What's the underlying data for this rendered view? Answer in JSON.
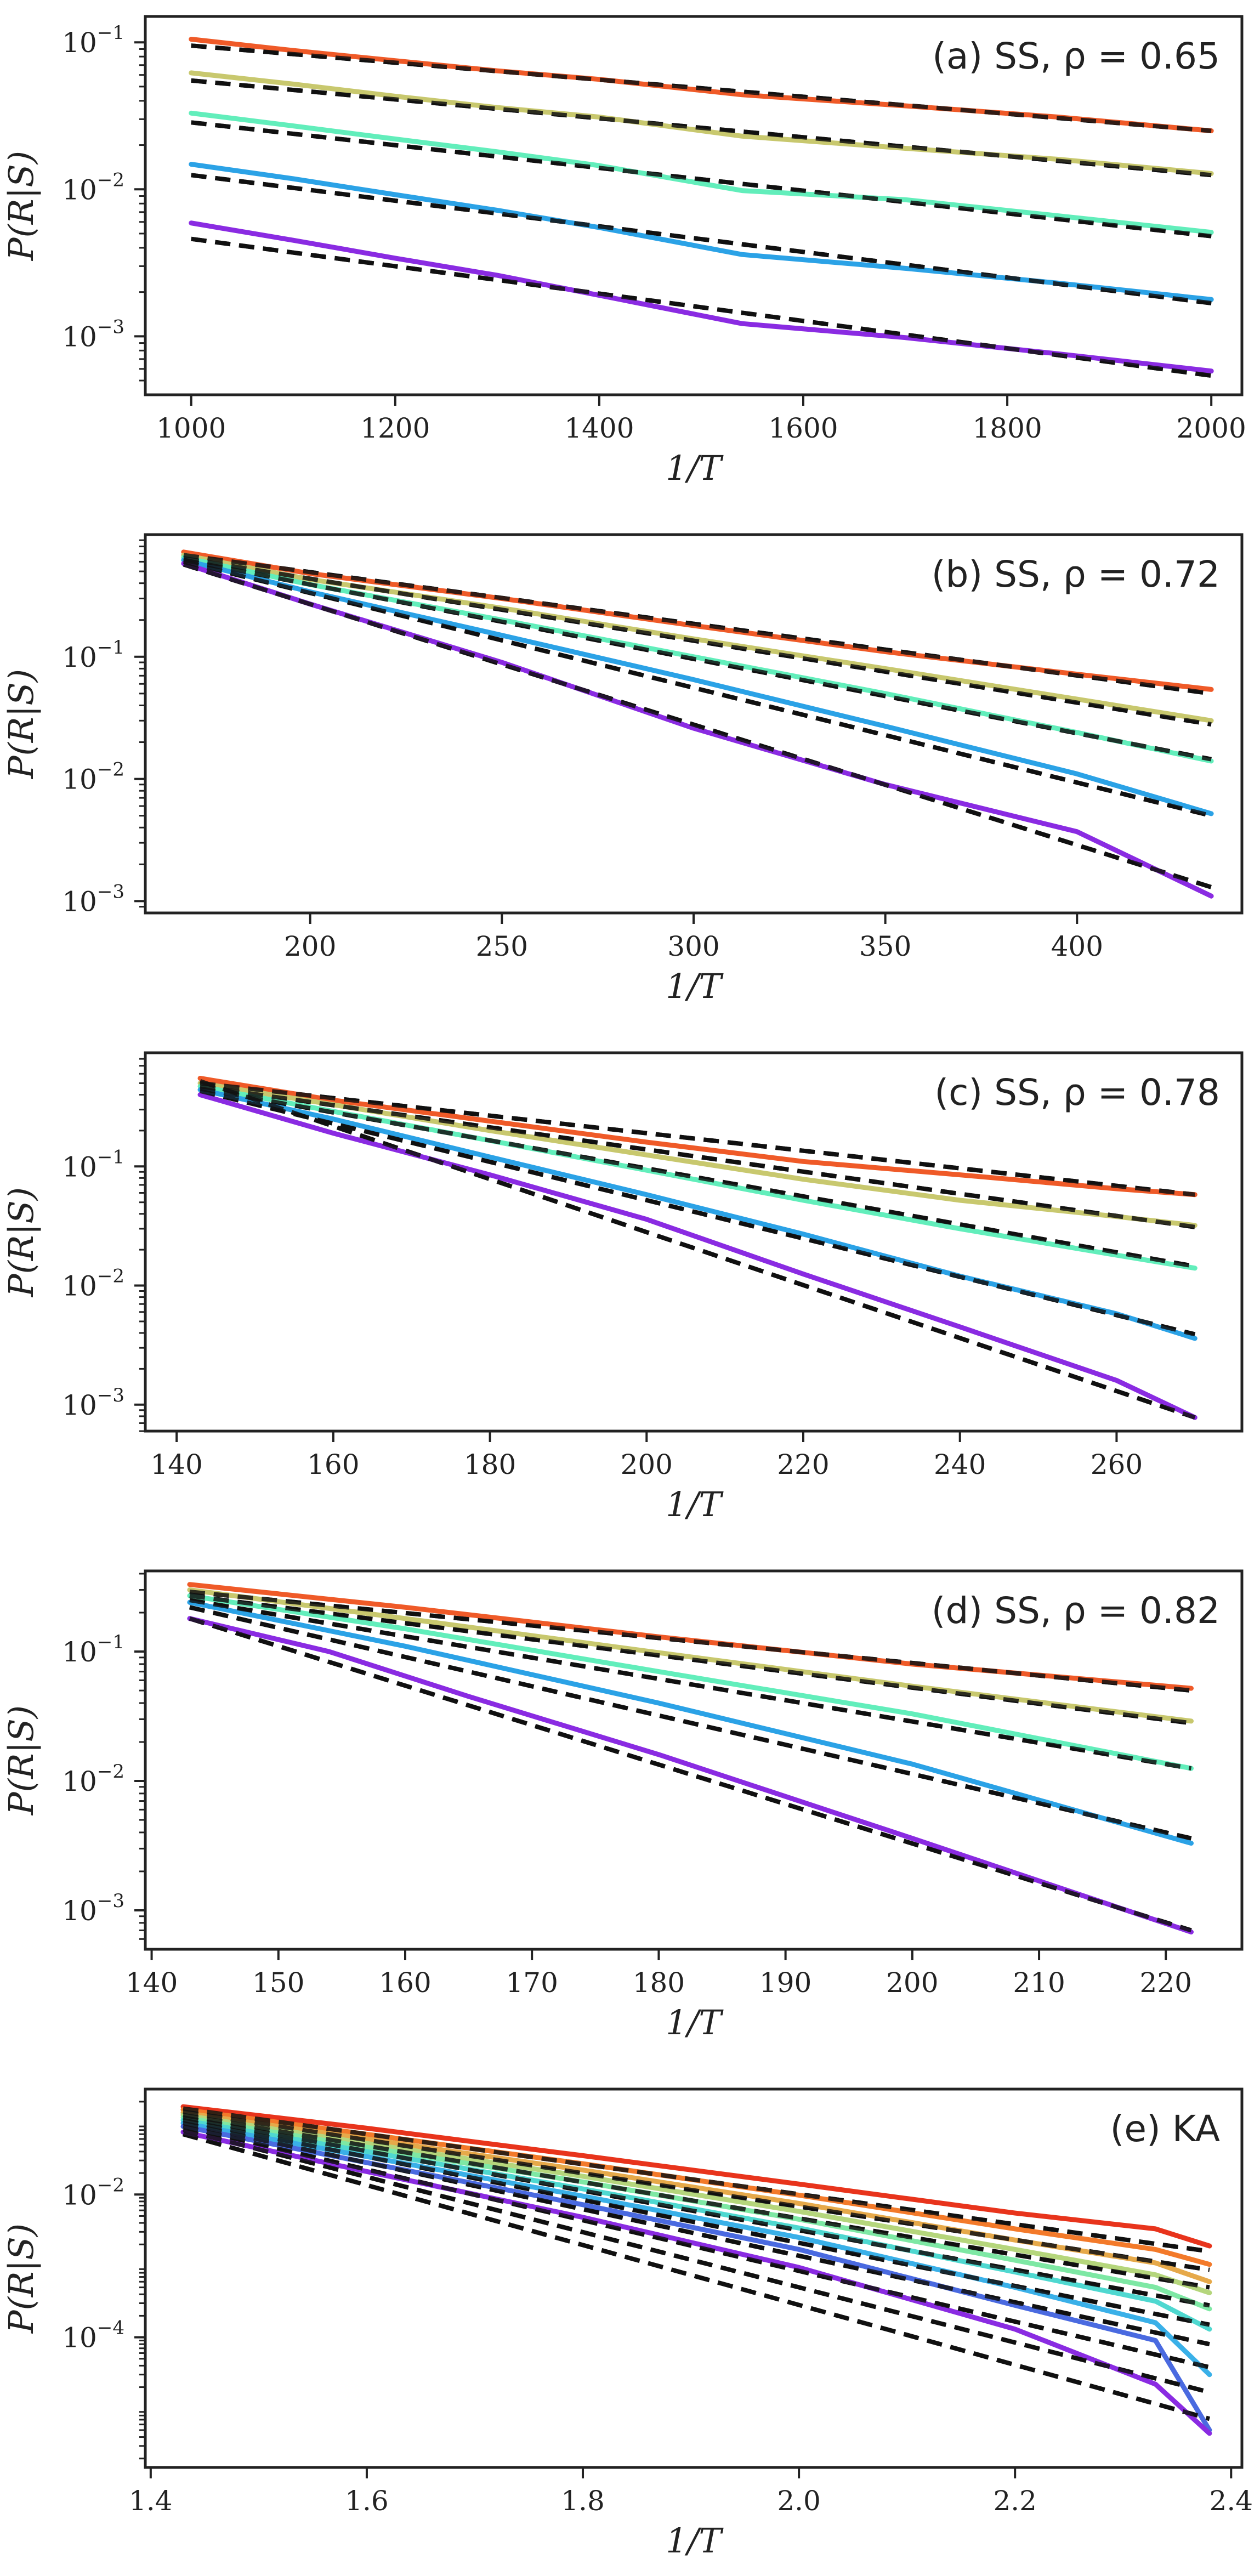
{
  "chart_data": [
    {
      "type": "line",
      "title": "(a) SS, ρ = 0.65",
      "xlabel": "1/T",
      "ylabel": "P(R|S)",
      "yscale": "log",
      "xlim": [
        955,
        2030
      ],
      "ylim": [
        0.0004,
        0.15
      ],
      "xticks": [
        1000,
        1200,
        1400,
        1600,
        1800,
        2000
      ],
      "xtick_labels": [
        "1000",
        "1200",
        "1400",
        "1600",
        "1800",
        "2000"
      ],
      "yticks": [
        0.001,
        0.01,
        0.1
      ],
      "ytick_labels": [
        {
          "base": "10",
          "exp": "−3"
        },
        {
          "base": "10",
          "exp": "−2"
        },
        {
          "base": "10",
          "exp": "−1"
        }
      ],
      "series": [
        {
          "color": "#ef5a28",
          "x": [
            1000,
            1100,
            1200,
            1300,
            1400,
            1540,
            1700,
            1850,
            2000
          ],
          "y": [
            0.105,
            0.088,
            0.075,
            0.064,
            0.056,
            0.044,
            0.037,
            0.031,
            0.025
          ]
        },
        {
          "color": "#c8c86e",
          "x": [
            1000,
            1100,
            1200,
            1300,
            1400,
            1540,
            1700,
            1850,
            2000
          ],
          "y": [
            0.062,
            0.052,
            0.043,
            0.036,
            0.031,
            0.023,
            0.019,
            0.016,
            0.0128
          ]
        },
        {
          "color": "#62eebb",
          "x": [
            1000,
            1100,
            1200,
            1300,
            1400,
            1540,
            1700,
            1850,
            2000
          ],
          "y": [
            0.033,
            0.027,
            0.022,
            0.018,
            0.0145,
            0.0098,
            0.0085,
            0.0066,
            0.0051
          ]
        },
        {
          "color": "#2ba2e6",
          "x": [
            1000,
            1100,
            1200,
            1300,
            1400,
            1540,
            1700,
            1850,
            2000
          ],
          "y": [
            0.0148,
            0.0118,
            0.0092,
            0.0072,
            0.0055,
            0.0036,
            0.0029,
            0.0023,
            0.00178
          ]
        },
        {
          "color": "#8a2be2",
          "x": [
            1000,
            1100,
            1200,
            1300,
            1400,
            1540,
            1700,
            1850,
            2000
          ],
          "y": [
            0.0059,
            0.0045,
            0.0034,
            0.0026,
            0.0019,
            0.00122,
            0.00098,
            0.00076,
            0.00058
          ]
        }
      ],
      "fits": [
        {
          "x": [
            1000,
            2000
          ],
          "y": [
            0.095,
            0.025
          ]
        },
        {
          "x": [
            1000,
            2000
          ],
          "y": [
            0.055,
            0.0125
          ]
        },
        {
          "x": [
            1000,
            2000
          ],
          "y": [
            0.0285,
            0.0048
          ]
        },
        {
          "x": [
            1000,
            2000
          ],
          "y": [
            0.0125,
            0.00168
          ]
        },
        {
          "x": [
            1000,
            2000
          ],
          "y": [
            0.0046,
            0.00054
          ]
        }
      ]
    },
    {
      "type": "line",
      "title": "(b) SS, ρ = 0.72",
      "xlabel": "1/T",
      "ylabel": "P(R|S)",
      "yscale": "log",
      "xlim": [
        157,
        443
      ],
      "ylim": [
        0.0008,
        1.0
      ],
      "xticks": [
        200,
        250,
        300,
        350,
        400
      ],
      "xtick_labels": [
        "200",
        "250",
        "300",
        "350",
        "400"
      ],
      "yticks": [
        0.001,
        0.01,
        0.1
      ],
      "ytick_labels": [
        {
          "base": "10",
          "exp": "−3"
        },
        {
          "base": "10",
          "exp": "−2"
        },
        {
          "base": "10",
          "exp": "−1"
        }
      ],
      "series": [
        {
          "color": "#ef5a28",
          "x": [
            167,
            200,
            250,
            300,
            350,
            400,
            435
          ],
          "y": [
            0.72,
            0.48,
            0.3,
            0.18,
            0.11,
            0.072,
            0.054
          ]
        },
        {
          "color": "#c8c86e",
          "x": [
            167,
            200,
            250,
            300,
            350,
            400,
            435
          ],
          "y": [
            0.68,
            0.43,
            0.25,
            0.14,
            0.08,
            0.045,
            0.03
          ]
        },
        {
          "color": "#62eebb",
          "x": [
            167,
            200,
            250,
            300,
            350,
            400,
            435
          ],
          "y": [
            0.65,
            0.39,
            0.2,
            0.1,
            0.05,
            0.024,
            0.014
          ]
        },
        {
          "color": "#2ba2e6",
          "x": [
            167,
            200,
            250,
            300,
            350,
            400,
            435
          ],
          "y": [
            0.62,
            0.34,
            0.15,
            0.065,
            0.027,
            0.011,
            0.0052
          ]
        },
        {
          "color": "#8a2be2",
          "x": [
            167,
            200,
            250,
            300,
            350,
            400,
            435
          ],
          "y": [
            0.58,
            0.27,
            0.09,
            0.026,
            0.009,
            0.0037,
            0.0011
          ]
        }
      ],
      "fits": [
        {
          "x": [
            167,
            435
          ],
          "y": [
            0.68,
            0.05
          ]
        },
        {
          "x": [
            167,
            435
          ],
          "y": [
            0.64,
            0.028
          ]
        },
        {
          "x": [
            167,
            435
          ],
          "y": [
            0.62,
            0.0145
          ]
        },
        {
          "x": [
            167,
            435
          ],
          "y": [
            0.6,
            0.005
          ]
        },
        {
          "x": [
            167,
            435
          ],
          "y": [
            0.57,
            0.0013
          ]
        }
      ]
    },
    {
      "type": "line",
      "title": "(c) SS, ρ = 0.78",
      "xlabel": "1/T",
      "ylabel": "P(R|S)",
      "yscale": "log",
      "xlim": [
        136,
        276
      ],
      "ylim": [
        0.0006,
        0.9
      ],
      "xticks": [
        140,
        160,
        180,
        200,
        220,
        240,
        260
      ],
      "xtick_labels": [
        "140",
        "160",
        "180",
        "200",
        "220",
        "240",
        "260"
      ],
      "yticks": [
        0.001,
        0.01,
        0.1
      ],
      "ytick_labels": [
        {
          "base": "10",
          "exp": "−3"
        },
        {
          "base": "10",
          "exp": "−2"
        },
        {
          "base": "10",
          "exp": "−1"
        }
      ],
      "series": [
        {
          "color": "#ef5a28",
          "x": [
            143,
            160,
            180,
            200,
            220,
            240,
            260,
            270
          ],
          "y": [
            0.55,
            0.36,
            0.24,
            0.16,
            0.11,
            0.085,
            0.065,
            0.058
          ]
        },
        {
          "color": "#c8c86e",
          "x": [
            143,
            160,
            180,
            200,
            220,
            240,
            260,
            270
          ],
          "y": [
            0.5,
            0.33,
            0.2,
            0.125,
            0.078,
            0.052,
            0.038,
            0.032
          ]
        },
        {
          "color": "#62eebb",
          "x": [
            143,
            160,
            180,
            200,
            220,
            240,
            260,
            270
          ],
          "y": [
            0.47,
            0.29,
            0.165,
            0.093,
            0.052,
            0.03,
            0.018,
            0.014
          ]
        },
        {
          "color": "#2ba2e6",
          "x": [
            143,
            160,
            180,
            200,
            220,
            240,
            260,
            270
          ],
          "y": [
            0.44,
            0.25,
            0.12,
            0.058,
            0.027,
            0.012,
            0.0058,
            0.0036
          ]
        },
        {
          "color": "#8a2be2",
          "x": [
            143,
            160,
            180,
            200,
            220,
            240,
            260,
            270
          ],
          "y": [
            0.4,
            0.19,
            0.085,
            0.036,
            0.0125,
            0.0045,
            0.0016,
            0.00078
          ]
        }
      ],
      "fits": [
        {
          "x": [
            143,
            270
          ],
          "y": [
            0.5,
            0.058
          ]
        },
        {
          "x": [
            143,
            270
          ],
          "y": [
            0.47,
            0.031
          ]
        },
        {
          "x": [
            143,
            270
          ],
          "y": [
            0.45,
            0.0145
          ]
        },
        {
          "x": [
            143,
            270
          ],
          "y": [
            0.43,
            0.0039
          ]
        },
        {
          "x": [
            143,
            270
          ],
          "y": [
            0.52,
            0.00078
          ]
        }
      ]
    },
    {
      "type": "line",
      "title": "(d) SS, ρ = 0.82",
      "xlabel": "1/T",
      "ylabel": "P(R|S)",
      "yscale": "log",
      "xlim": [
        139.5,
        226
      ],
      "ylim": [
        0.0005,
        0.42
      ],
      "xticks": [
        140,
        150,
        160,
        170,
        180,
        190,
        200,
        210,
        220
      ],
      "xtick_labels": [
        "140",
        "150",
        "160",
        "170",
        "180",
        "190",
        "200",
        "210",
        "220"
      ],
      "yticks": [
        0.001,
        0.01,
        0.1
      ],
      "ytick_labels": [
        {
          "base": "10",
          "exp": "−3"
        },
        {
          "base": "10",
          "exp": "−2"
        },
        {
          "base": "10",
          "exp": "−1"
        }
      ],
      "series": [
        {
          "color": "#ef5a28",
          "x": [
            143,
            160,
            180,
            200,
            222
          ],
          "y": [
            0.33,
            0.22,
            0.13,
            0.08,
            0.052
          ]
        },
        {
          "color": "#c8c86e",
          "x": [
            143,
            160,
            180,
            200,
            222
          ],
          "y": [
            0.3,
            0.18,
            0.098,
            0.054,
            0.029
          ]
        },
        {
          "color": "#62eebb",
          "x": [
            143,
            160,
            180,
            200,
            222
          ],
          "y": [
            0.27,
            0.15,
            0.07,
            0.033,
            0.0125
          ]
        },
        {
          "color": "#2ba2e6",
          "x": [
            143,
            160,
            180,
            200,
            222
          ],
          "y": [
            0.24,
            0.11,
            0.04,
            0.0135,
            0.0033
          ]
        },
        {
          "color": "#8a2be2",
          "x": [
            143,
            154,
            165,
            180,
            200,
            222
          ],
          "y": [
            0.18,
            0.1,
            0.045,
            0.016,
            0.0036,
            0.00068
          ]
        }
      ],
      "fits": [
        {
          "x": [
            143,
            222
          ],
          "y": [
            0.29,
            0.05
          ]
        },
        {
          "x": [
            143,
            222
          ],
          "y": [
            0.27,
            0.028
          ]
        },
        {
          "x": [
            143,
            222
          ],
          "y": [
            0.25,
            0.0125
          ]
        },
        {
          "x": [
            143,
            222
          ],
          "y": [
            0.22,
            0.0036
          ]
        },
        {
          "x": [
            143,
            222
          ],
          "y": [
            0.18,
            0.0007
          ]
        }
      ]
    },
    {
      "type": "line",
      "title": "(e) KA",
      "xlabel": "1/T",
      "ylabel": "P(R|S)",
      "yscale": "log",
      "xlim": [
        1.395,
        2.41
      ],
      "ylim": [
        1.5e-06,
        0.3
      ],
      "xticks": [
        1.4,
        1.6,
        1.8,
        2.0,
        2.2,
        2.4
      ],
      "xtick_labels": [
        "1.4",
        "1.6",
        "1.8",
        "2.0",
        "2.2",
        "2.4"
      ],
      "yticks": [
        0.0001,
        0.01
      ],
      "ytick_labels": [
        {
          "base": "10",
          "exp": "−4"
        },
        {
          "base": "10",
          "exp": "−2"
        }
      ],
      "series": [
        {
          "color": "#e8341c",
          "x": [
            1.43,
            1.6,
            1.8,
            2.0,
            2.2,
            2.33,
            2.38
          ],
          "y": [
            0.17,
            0.085,
            0.035,
            0.014,
            0.0055,
            0.0033,
            0.0019
          ]
        },
        {
          "color": "#f37a2a",
          "x": [
            1.43,
            1.6,
            1.8,
            2.0,
            2.2,
            2.33,
            2.38
          ],
          "y": [
            0.155,
            0.07,
            0.027,
            0.0098,
            0.0033,
            0.0017,
            0.00105
          ]
        },
        {
          "color": "#e6a94a",
          "x": [
            1.43,
            1.6,
            1.8,
            2.0,
            2.2,
            2.33,
            2.38
          ],
          "y": [
            0.14,
            0.06,
            0.022,
            0.0075,
            0.0023,
            0.0011,
            0.0006
          ]
        },
        {
          "color": "#b5d67c",
          "x": [
            1.43,
            1.6,
            1.8,
            2.0,
            2.2,
            2.33,
            2.38
          ],
          "y": [
            0.13,
            0.052,
            0.018,
            0.0058,
            0.0017,
            0.00075,
            0.00042
          ]
        },
        {
          "color": "#7ee8a4",
          "x": [
            1.43,
            1.6,
            1.8,
            2.0,
            2.2,
            2.33,
            2.38
          ],
          "y": [
            0.12,
            0.046,
            0.015,
            0.0045,
            0.0012,
            0.0005,
            0.00025
          ]
        },
        {
          "color": "#4fd8d0",
          "x": [
            1.43,
            1.6,
            1.8,
            2.0,
            2.2,
            2.33,
            2.38
          ],
          "y": [
            0.11,
            0.04,
            0.012,
            0.0034,
            0.00082,
            0.00032,
            0.00013
          ]
        },
        {
          "color": "#3ab0e8",
          "x": [
            1.43,
            1.6,
            1.8,
            2.0,
            2.2,
            2.33,
            2.38
          ],
          "y": [
            0.1,
            0.034,
            0.0095,
            0.0025,
            0.0005,
            0.00016,
            3e-05
          ]
        },
        {
          "color": "#4a6ae0",
          "x": [
            1.43,
            1.6,
            1.8,
            2.0,
            2.2,
            2.33,
            2.38
          ],
          "y": [
            0.09,
            0.028,
            0.0072,
            0.0017,
            0.00028,
            9e-05,
            5e-06
          ]
        },
        {
          "color": "#8a2be2",
          "x": [
            1.43,
            1.6,
            1.8,
            2.0,
            2.2,
            2.33,
            2.38
          ],
          "y": [
            0.075,
            0.021,
            0.0048,
            0.00095,
            0.00013,
            2.2e-05,
            4.5e-06
          ]
        }
      ],
      "fits": [
        {
          "x": [
            1.43,
            2.38
          ],
          "y": [
            0.16,
            0.0016
          ]
        },
        {
          "x": [
            1.43,
            2.38
          ],
          "y": [
            0.145,
            0.00088
          ]
        },
        {
          "x": [
            1.43,
            2.38
          ],
          "y": [
            0.13,
            0.0005
          ]
        },
        {
          "x": [
            1.43,
            2.38
          ],
          "y": [
            0.12,
            0.00028
          ]
        },
        {
          "x": [
            1.43,
            2.38
          ],
          "y": [
            0.11,
            0.00015
          ]
        },
        {
          "x": [
            1.43,
            2.38
          ],
          "y": [
            0.1,
            8e-05
          ]
        },
        {
          "x": [
            1.43,
            2.38
          ],
          "y": [
            0.09,
            3.8e-05
          ]
        },
        {
          "x": [
            1.43,
            2.38
          ],
          "y": [
            0.08,
            1.7e-05
          ]
        },
        {
          "x": [
            1.43,
            2.38
          ],
          "y": [
            0.07,
            7.2e-06
          ]
        }
      ]
    }
  ]
}
